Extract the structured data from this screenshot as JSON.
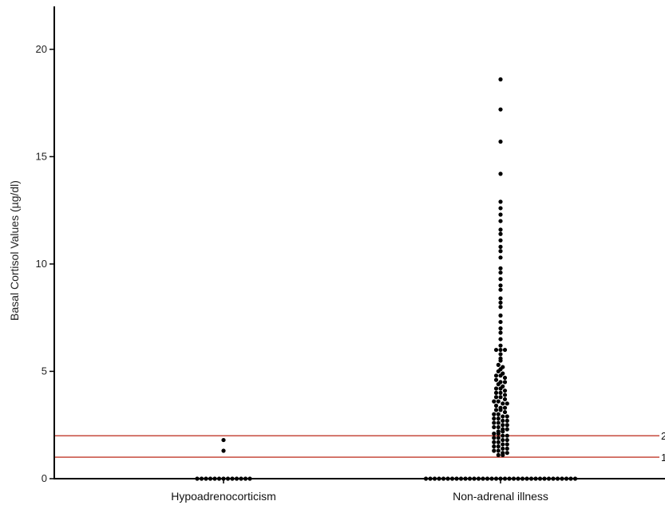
{
  "chart_data": {
    "type": "scatter",
    "ylabel": "Basal Cortisol Values (µg/dl)",
    "xlabel": "",
    "ylim": [
      0,
      22
    ],
    "yticks": [
      0,
      5,
      10,
      15,
      20
    ],
    "categories": [
      "Hypoadrenocorticism",
      "Non-adrenal illness"
    ],
    "reference_lines": [
      {
        "value": 2,
        "label": "2",
        "color": "#c0392b"
      },
      {
        "value": 1,
        "label": "1",
        "color": "#c0392b"
      }
    ],
    "groups": [
      {
        "category": "Hypoadrenocorticism",
        "values": [
          1.8,
          1.3
        ],
        "zero_count": 13
      },
      {
        "category": "Non-adrenal illness",
        "values": [
          18.6,
          17.2,
          15.7,
          14.2,
          12.9,
          12.6,
          12.3,
          12.0,
          11.6,
          11.4,
          11.1,
          10.8,
          10.6,
          10.3,
          9.8,
          9.6,
          9.3,
          9.0,
          8.8,
          8.4,
          8.2,
          8.0,
          7.6,
          7.3,
          7.0,
          6.8,
          6.5,
          6.2,
          6.0,
          6.0,
          6.0,
          5.8,
          5.6,
          5.5,
          5.3,
          5.2,
          5.1,
          5.0,
          4.9,
          4.8,
          4.8,
          4.7,
          4.6,
          4.5,
          4.5,
          4.4,
          4.3,
          4.2,
          4.2,
          4.1,
          4.0,
          4.0,
          3.9,
          3.8,
          3.8,
          3.7,
          3.6,
          3.6,
          3.5,
          3.5,
          3.4,
          3.3,
          3.3,
          3.2,
          3.2,
          3.1,
          3.0,
          3.0,
          2.9,
          2.9,
          2.8,
          2.8,
          2.7,
          2.7,
          2.6,
          2.6,
          2.5,
          2.5,
          2.4,
          2.4,
          2.3,
          2.3,
          2.2,
          2.2,
          2.1,
          2.1,
          2.0,
          2.0,
          1.9,
          1.9,
          1.8,
          1.8,
          1.7,
          1.7,
          1.6,
          1.6,
          1.5,
          1.5,
          1.4,
          1.4,
          1.3,
          1.3,
          1.2,
          1.2,
          1.1,
          1.1
        ],
        "zero_count": 35
      }
    ]
  }
}
